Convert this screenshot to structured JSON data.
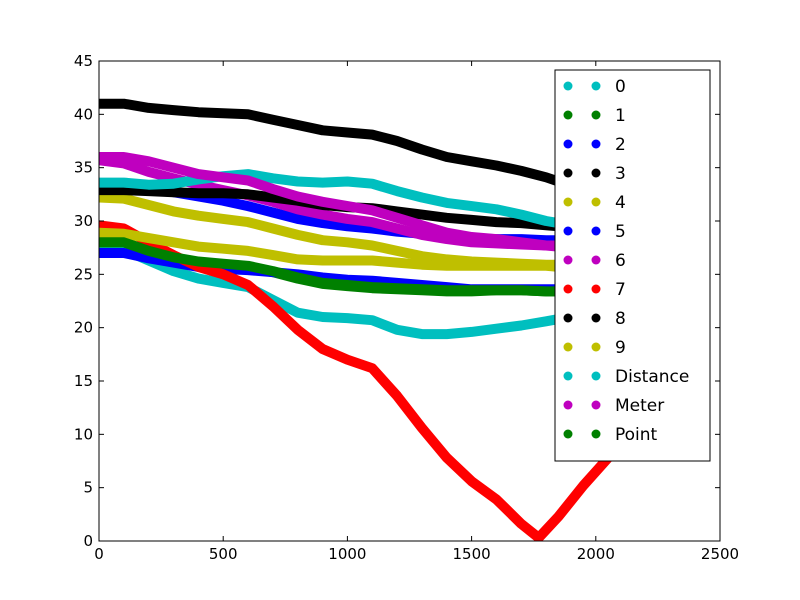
{
  "chart_data": {
    "type": "line",
    "title": "",
    "xlabel": "",
    "ylabel": "",
    "xlim": [
      0,
      2500
    ],
    "ylim": [
      0,
      45
    ],
    "xticks": [
      0,
      500,
      1000,
      1500,
      2000,
      2500
    ],
    "yticks": [
      0,
      5,
      10,
      15,
      20,
      25,
      30,
      35,
      40,
      45
    ],
    "xtick_labels": [
      "0",
      "500",
      "1000",
      "1500",
      "2000",
      "2500"
    ],
    "ytick_labels": [
      "0",
      "5",
      "10",
      "15",
      "20",
      "25",
      "30",
      "35",
      "40",
      "45"
    ],
    "grid": false,
    "legend_position": "top-right",
    "series": [
      {
        "name": "0",
        "color": "#00bfbf",
        "x": [
          0,
          100,
          200,
          300,
          400,
          500,
          600,
          700,
          800,
          900,
          1000,
          1100,
          1200,
          1300,
          1400,
          1500,
          1600,
          1700,
          1800,
          1850
        ],
        "y": [
          27.5,
          27.3,
          26.3,
          25.3,
          24.6,
          24.2,
          23.8,
          22.6,
          21.4,
          21.0,
          20.9,
          20.7,
          19.8,
          19.4,
          19.4,
          19.6,
          19.9,
          20.2,
          20.6,
          20.8
        ]
      },
      {
        "name": "1",
        "color": "#008000",
        "x": [
          0,
          100,
          200,
          300,
          400,
          500,
          600,
          700,
          800,
          900,
          1000,
          1100,
          1200,
          1300,
          1400,
          1500,
          1600,
          1700,
          1800,
          1850
        ],
        "y": [
          28.0,
          28.0,
          27.2,
          26.6,
          26.1,
          25.9,
          25.6,
          25.2,
          24.6,
          24.1,
          23.9,
          23.7,
          23.6,
          23.5,
          23.4,
          23.4,
          23.5,
          23.5,
          23.4,
          23.4
        ]
      },
      {
        "name": "2",
        "color": "#0000ff",
        "x": [
          0,
          100,
          200,
          300,
          400,
          500,
          600,
          700,
          800,
          900,
          1000,
          1100,
          1200,
          1300,
          1400,
          1500,
          1600,
          1700,
          1800,
          1850
        ],
        "y": [
          27.0,
          27.0,
          26.5,
          26.1,
          25.7,
          25.5,
          25.4,
          25.2,
          25.0,
          24.7,
          24.5,
          24.4,
          24.2,
          24.0,
          23.8,
          23.6,
          23.6,
          23.6,
          23.6,
          23.6
        ]
      },
      {
        "name": "3",
        "color": "#000000",
        "x": [
          0,
          100,
          200,
          300,
          400,
          500,
          600,
          700,
          800,
          900,
          1000,
          1100,
          1200,
          1300,
          1400,
          1500,
          1600,
          1700,
          1800,
          1850
        ],
        "y": [
          41.0,
          41.0,
          40.6,
          40.4,
          40.2,
          40.1,
          40.0,
          39.5,
          39.0,
          38.5,
          38.3,
          38.1,
          37.5,
          36.7,
          36.0,
          35.6,
          35.2,
          34.7,
          34.1,
          33.7
        ]
      },
      {
        "name": "4",
        "color": "#bfbf00",
        "x": [
          0,
          100,
          200,
          300,
          400,
          500,
          600,
          700,
          800,
          900,
          1000,
          1100,
          1200,
          1300,
          1400,
          1500,
          1600,
          1700,
          1800,
          1850
        ],
        "y": [
          32.2,
          32.1,
          31.5,
          30.9,
          30.5,
          30.2,
          29.9,
          29.3,
          28.7,
          28.2,
          28.0,
          27.7,
          27.2,
          26.7,
          26.4,
          26.2,
          26.1,
          26.0,
          25.9,
          25.9
        ]
      },
      {
        "name": "5",
        "color": "#0000ff",
        "x": [
          0,
          100,
          200,
          300,
          400,
          500,
          600,
          700,
          800,
          900,
          1000,
          1100,
          1200,
          1300,
          1400,
          1500,
          1600,
          1700,
          1800,
          1850
        ],
        "y": [
          33.0,
          33.0,
          32.9,
          32.7,
          32.3,
          31.9,
          31.4,
          30.8,
          30.2,
          29.8,
          29.5,
          29.3,
          29.0,
          28.8,
          28.6,
          28.4,
          28.3,
          28.3,
          28.2,
          28.2
        ]
      },
      {
        "name": "6",
        "color": "#bf00bf",
        "x": [
          0,
          100,
          200,
          300,
          400,
          500,
          600,
          700,
          800,
          900,
          1000,
          1100,
          1200,
          1300,
          1400,
          1500,
          1600,
          1700,
          1800,
          1850
        ],
        "y": [
          35.7,
          35.4,
          34.6,
          34.0,
          33.4,
          32.9,
          32.4,
          31.8,
          31.1,
          30.6,
          30.2,
          29.9,
          29.3,
          28.7,
          28.3,
          28.0,
          27.9,
          27.8,
          27.7,
          27.7
        ]
      },
      {
        "name": "7",
        "color": "#ff0000",
        "x": [
          0,
          100,
          200,
          300,
          400,
          500,
          600,
          700,
          800,
          900,
          1000,
          1100,
          1200,
          1300,
          1400,
          1500,
          1600,
          1700,
          1770,
          1850,
          1950,
          2050
        ],
        "y": [
          29.6,
          29.3,
          28.0,
          26.8,
          25.7,
          25.0,
          24.0,
          22.0,
          19.8,
          18.0,
          17.0,
          16.2,
          13.6,
          10.6,
          7.8,
          5.6,
          3.9,
          1.6,
          0.3,
          2.3,
          5.2,
          7.8
        ]
      },
      {
        "name": "8",
        "color": "#000000",
        "x": [
          0,
          100,
          200,
          300,
          400,
          500,
          600,
          700,
          800,
          900,
          1000,
          1100,
          1200,
          1300,
          1400,
          1500,
          1600,
          1700,
          1800,
          1850
        ],
        "y": [
          32.9,
          32.9,
          32.8,
          32.7,
          32.6,
          32.6,
          32.5,
          32.2,
          31.9,
          31.5,
          31.3,
          31.2,
          30.9,
          30.6,
          30.3,
          30.1,
          29.9,
          29.8,
          29.6,
          29.5
        ]
      },
      {
        "name": "9",
        "color": "#bfbf00",
        "x": [
          0,
          100,
          200,
          300,
          400,
          500,
          600,
          700,
          800,
          900,
          1000,
          1100,
          1200,
          1300,
          1400,
          1500,
          1600,
          1700,
          1800,
          1850
        ],
        "y": [
          28.9,
          28.8,
          28.4,
          28.0,
          27.6,
          27.4,
          27.2,
          26.8,
          26.4,
          26.3,
          26.3,
          26.3,
          26.1,
          25.9,
          25.8,
          25.8,
          25.8,
          25.8,
          25.8,
          25.7
        ]
      },
      {
        "name": "Distance",
        "color": "#00bfbf",
        "x": [
          0,
          100,
          200,
          300,
          400,
          500,
          600,
          700,
          800,
          900,
          1000,
          1100,
          1200,
          1300,
          1400,
          1500,
          1600,
          1700,
          1800,
          1850
        ],
        "y": [
          33.6,
          33.6,
          33.4,
          33.5,
          33.9,
          34.2,
          34.4,
          34.0,
          33.7,
          33.6,
          33.7,
          33.5,
          32.8,
          32.2,
          31.7,
          31.4,
          31.1,
          30.6,
          30.0,
          29.8
        ]
      },
      {
        "name": "Meter",
        "color": "#bf00bf",
        "x": [
          0,
          100,
          200,
          300,
          400,
          500,
          600,
          700,
          800,
          900,
          1000,
          1100,
          1200,
          1300,
          1400,
          1500,
          1600,
          1700,
          1800,
          1850
        ],
        "y": [
          36.0,
          36.0,
          35.6,
          35.0,
          34.4,
          34.1,
          33.8,
          33.0,
          32.3,
          31.8,
          31.4,
          31.0,
          30.3,
          29.6,
          28.9,
          28.5,
          28.3,
          28.0,
          27.7,
          27.6
        ]
      },
      {
        "name": "Point",
        "color": "#008000",
        "x": [
          0,
          100,
          200,
          300,
          400,
          500,
          600,
          700,
          800,
          900,
          1000,
          1100,
          1200,
          1300,
          1400,
          1500,
          1600,
          1700,
          1800,
          1850
        ],
        "y": [
          28.0,
          28.0,
          27.2,
          26.6,
          26.2,
          26.0,
          25.8,
          25.3,
          24.7,
          24.2,
          24.0,
          23.8,
          23.7,
          23.6,
          23.5,
          23.5,
          23.5,
          23.5,
          23.4,
          23.4
        ]
      }
    ]
  }
}
